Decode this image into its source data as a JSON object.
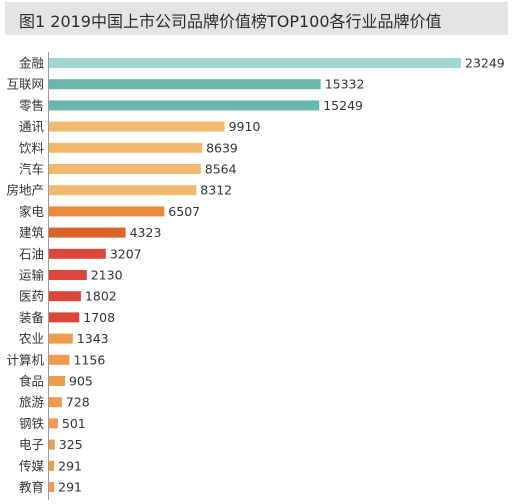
{
  "chart_data": {
    "type": "bar",
    "orientation": "horizontal",
    "title": "图1  2019中国上市公司品牌价值榜TOP100各行业品牌价值",
    "categories": [
      "金融",
      "互联网",
      "零售",
      "通讯",
      "饮料",
      "汽车",
      "房地产",
      "家电",
      "建筑",
      "石油",
      "运输",
      "医药",
      "装备",
      "农业",
      "计算机",
      "食品",
      "旅游",
      "钢铁",
      "电子",
      "传媒",
      "教育"
    ],
    "values": [
      23249,
      15332,
      15249,
      9910,
      8639,
      8564,
      8312,
      6507,
      4323,
      3207,
      2130,
      1802,
      1708,
      1343,
      1156,
      905,
      728,
      501,
      325,
      291,
      291
    ],
    "colors": [
      "#9fd6cf",
      "#69b6ad",
      "#69b6ad",
      "#f0b96e",
      "#f0b96e",
      "#f0b96e",
      "#f0b96e",
      "#e88b3c",
      "#d9642c",
      "#d9463a",
      "#d9463a",
      "#d9463a",
      "#d9463a",
      "#ef9a4e",
      "#ef9a4e",
      "#ef9a4e",
      "#ef9a4e",
      "#ef9a4e",
      "#ef9a4e",
      "#ef9a4e",
      "#ef9a4e"
    ],
    "xlim": [
      0,
      23249
    ],
    "grid": false,
    "legend": "none"
  }
}
